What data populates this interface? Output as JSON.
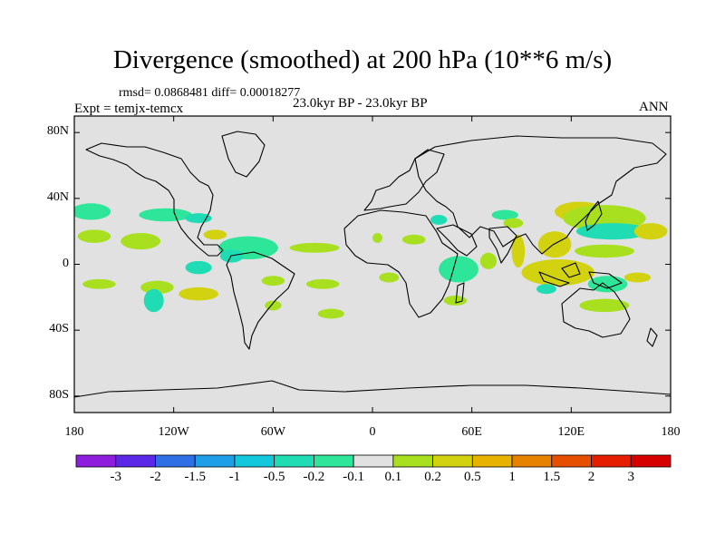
{
  "title": "Divergence (smoothed) at 200 hPa (10**6 m/s)",
  "stats_line": "rmsd= 0.0868481  diff= 0.00018277",
  "experiment": "Expt = temjx-temcx",
  "period": "23.0kyr BP - 23.0kyr BP",
  "season": "ANN",
  "map": {
    "background_color": "#e1e1e1",
    "lat_ticks": [
      {
        "label": "80N",
        "lat": 80
      },
      {
        "label": "40N",
        "lat": 40
      },
      {
        "label": "0",
        "lat": 0
      },
      {
        "label": "40S",
        "lat": -40
      },
      {
        "label": "80S",
        "lat": -80
      }
    ],
    "lon_ticks": [
      {
        "label": "180",
        "lon": -180
      },
      {
        "label": "120W",
        "lon": -120
      },
      {
        "label": "60W",
        "lon": -60
      },
      {
        "label": "0",
        "lon": 0
      },
      {
        "label": "60E",
        "lon": 60
      },
      {
        "label": "120E",
        "lon": 120
      },
      {
        "label": "180",
        "lon": 180
      }
    ]
  },
  "colorbar": {
    "labels": [
      "-3",
      "-2",
      "-1.5",
      "-1",
      "-0.5",
      "-0.2",
      "-0.1",
      "0.1",
      "0.2",
      "0.5",
      "1",
      "1.5",
      "2",
      "3"
    ],
    "colors": [
      "#8c1edc",
      "#5a28e6",
      "#2f6fe6",
      "#1e9ee6",
      "#14c8dc",
      "#20dcb4",
      "#2ee69a",
      "#e1e1e1",
      "#a8e020",
      "#d2d210",
      "#e6b400",
      "#e68200",
      "#e64e00",
      "#e61e00",
      "#d60000"
    ]
  },
  "chart_data": {
    "type": "heatmap",
    "title": "Divergence (smoothed) at 200 hPa (10**6 m/s)",
    "projection": "cylindrical equidistant",
    "lon_range": [
      -180,
      180
    ],
    "lat_range": [
      -90,
      90
    ],
    "contour_levels": [
      -3,
      -2,
      -1.5,
      -1,
      -0.5,
      -0.2,
      -0.1,
      0.1,
      0.2,
      0.5,
      1,
      1.5,
      2,
      3
    ],
    "anomaly_regions": [
      {
        "lon": -170,
        "lat": 32,
        "rx": 12,
        "ry": 5,
        "level": -0.15
      },
      {
        "lon": -125,
        "lat": 30,
        "rx": 16,
        "ry": 4,
        "level": -0.15
      },
      {
        "lon": -105,
        "lat": 28,
        "rx": 8,
        "ry": 3,
        "level": -0.25
      },
      {
        "lon": -168,
        "lat": 17,
        "rx": 10,
        "ry": 4,
        "level": 0.2
      },
      {
        "lon": -140,
        "lat": 14,
        "rx": 12,
        "ry": 5,
        "level": 0.2
      },
      {
        "lon": -95,
        "lat": 18,
        "rx": 7,
        "ry": 3,
        "level": 0.3
      },
      {
        "lon": -75,
        "lat": 10,
        "rx": 18,
        "ry": 7,
        "level": -0.15
      },
      {
        "lon": -85,
        "lat": 5,
        "rx": 7,
        "ry": 4,
        "level": -0.4
      },
      {
        "lon": -105,
        "lat": -2,
        "rx": 8,
        "ry": 4,
        "level": -0.3
      },
      {
        "lon": -105,
        "lat": -18,
        "rx": 12,
        "ry": 4,
        "level": 0.25
      },
      {
        "lon": -165,
        "lat": -12,
        "rx": 10,
        "ry": 3,
        "level": 0.2
      },
      {
        "lon": -130,
        "lat": -14,
        "rx": 10,
        "ry": 4,
        "level": 0.2
      },
      {
        "lon": -132,
        "lat": -22,
        "rx": 6,
        "ry": 7,
        "level": -0.2
      },
      {
        "lon": -60,
        "lat": -10,
        "rx": 7,
        "ry": 3,
        "level": 0.2
      },
      {
        "lon": -60,
        "lat": -25,
        "rx": 5,
        "ry": 3,
        "level": 0.15
      },
      {
        "lon": -35,
        "lat": 10,
        "rx": 15,
        "ry": 3,
        "level": 0.2
      },
      {
        "lon": -30,
        "lat": -12,
        "rx": 10,
        "ry": 3,
        "level": 0.2
      },
      {
        "lon": -25,
        "lat": -30,
        "rx": 8,
        "ry": 3,
        "level": 0.15
      },
      {
        "lon": 3,
        "lat": 16,
        "rx": 3,
        "ry": 3,
        "level": 0.2
      },
      {
        "lon": 10,
        "lat": -8,
        "rx": 6,
        "ry": 3,
        "level": 0.2
      },
      {
        "lon": 25,
        "lat": 15,
        "rx": 7,
        "ry": 3,
        "level": 0.2
      },
      {
        "lon": 40,
        "lat": 27,
        "rx": 5,
        "ry": 3,
        "level": -0.2
      },
      {
        "lon": 52,
        "lat": -3,
        "rx": 12,
        "ry": 8,
        "level": -0.15
      },
      {
        "lon": 50,
        "lat": -22,
        "rx": 7,
        "ry": 3,
        "level": 0.2
      },
      {
        "lon": 70,
        "lat": 2,
        "rx": 5,
        "ry": 5,
        "level": 0.2
      },
      {
        "lon": 80,
        "lat": 30,
        "rx": 8,
        "ry": 3,
        "level": -0.15
      },
      {
        "lon": 88,
        "lat": 8,
        "rx": 4,
        "ry": 10,
        "level": 0.4
      },
      {
        "lon": 85,
        "lat": 25,
        "rx": 6,
        "ry": 3,
        "level": 0.2
      },
      {
        "lon": 110,
        "lat": 12,
        "rx": 10,
        "ry": 8,
        "level": 0.25
      },
      {
        "lon": 112,
        "lat": -5,
        "rx": 22,
        "ry": 8,
        "level": 0.25
      },
      {
        "lon": 105,
        "lat": -15,
        "rx": 6,
        "ry": 3,
        "level": -0.2
      },
      {
        "lon": 125,
        "lat": 32,
        "rx": 15,
        "ry": 6,
        "level": 0.25
      },
      {
        "lon": 140,
        "lat": 28,
        "rx": 25,
        "ry": 8,
        "level": 0.2
      },
      {
        "lon": 145,
        "lat": 20,
        "rx": 22,
        "ry": 5,
        "level": -0.3
      },
      {
        "lon": 140,
        "lat": 8,
        "rx": 18,
        "ry": 4,
        "level": 0.2
      },
      {
        "lon": 142,
        "lat": -12,
        "rx": 12,
        "ry": 5,
        "level": -0.15
      },
      {
        "lon": 140,
        "lat": -25,
        "rx": 15,
        "ry": 4,
        "level": 0.2
      },
      {
        "lon": 168,
        "lat": 20,
        "rx": 10,
        "ry": 5,
        "level": 0.25
      },
      {
        "lon": 160,
        "lat": -8,
        "rx": 8,
        "ry": 3,
        "level": 0.3
      }
    ]
  }
}
